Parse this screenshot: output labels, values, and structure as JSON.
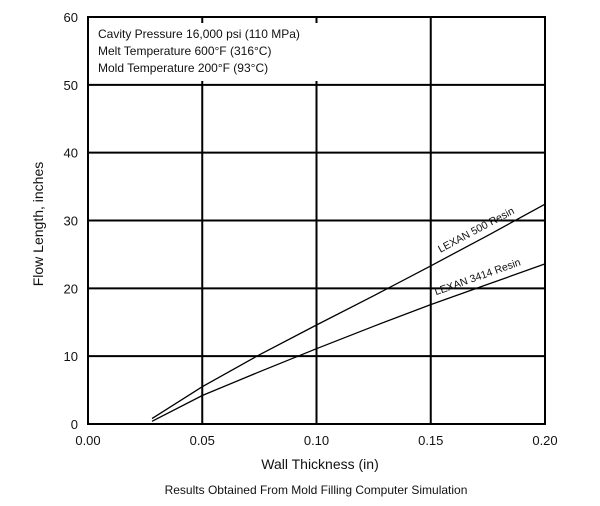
{
  "chart_data": {
    "type": "line",
    "xlabel": "Wall Thickness (in)",
    "ylabel": "Flow Length, inches",
    "xlim": [
      0,
      0.2
    ],
    "ylim": [
      0,
      60
    ],
    "xticks": [
      "0.00",
      "0.05",
      "0.10",
      "0.15",
      "0.20"
    ],
    "yticks": [
      "0",
      "10",
      "20",
      "30",
      "40",
      "50",
      "60"
    ],
    "grid": true,
    "notes": [
      "Cavity Pressure 16,000 psi (110 MPa)",
      "Melt Temperature 600°F (316°C)",
      "Mold Temperature 200°F (93°C)"
    ],
    "caption": "Results Obtained From Mold Filling Computer Simulation",
    "series": [
      {
        "name": "LEXAN 500 Resin",
        "x": [
          0.028,
          0.05,
          0.075,
          0.1,
          0.125,
          0.15,
          0.175,
          0.2
        ],
        "y": [
          0.8,
          5.5,
          10.2,
          14.6,
          18.9,
          23.3,
          27.8,
          32.4
        ],
        "color": "#000000"
      },
      {
        "name": "LEXAN 3414 Resin",
        "x": [
          0.028,
          0.05,
          0.075,
          0.1,
          0.125,
          0.15,
          0.175,
          0.2
        ],
        "y": [
          0.4,
          4.2,
          7.7,
          11.1,
          14.4,
          17.6,
          20.6,
          23.6
        ],
        "color": "#000000"
      }
    ]
  }
}
